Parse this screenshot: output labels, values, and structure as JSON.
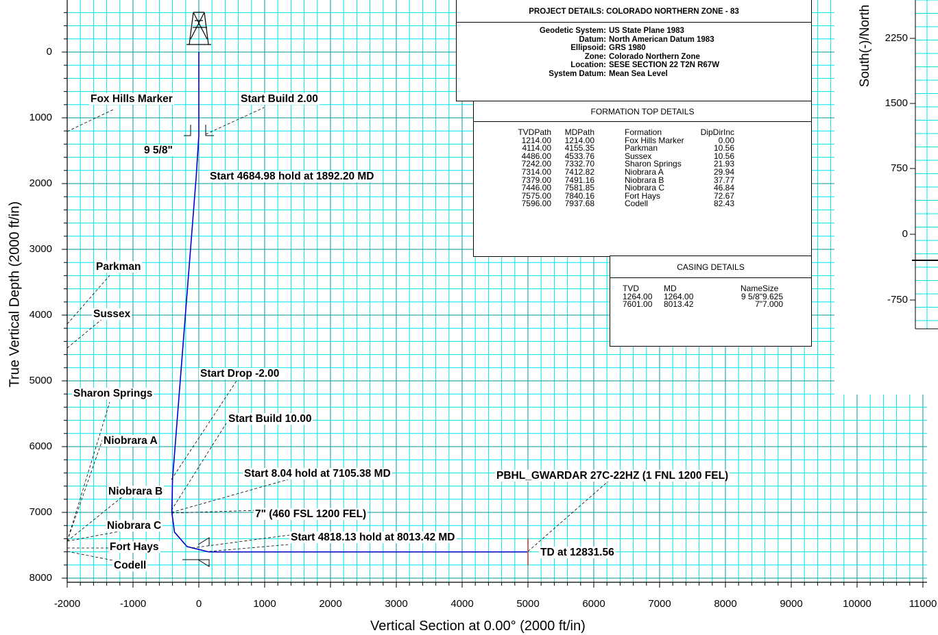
{
  "chart_data": {
    "type": "line",
    "xlabel": "Vertical Section at 0.00° (2000 ft/in)",
    "ylabel": "True Vertical Depth (2000 ft/in)",
    "xlim": [
      -2000,
      11000
    ],
    "ylim": [
      8000,
      0
    ],
    "x_ticks": [
      "-2000",
      "-1000",
      "0",
      "1000",
      "2000",
      "3000",
      "4000",
      "5000",
      "6000",
      "7000",
      "8000",
      "9000",
      "10000",
      "11000"
    ],
    "y_ticks": [
      "0",
      "1000",
      "2000",
      "3000",
      "4000",
      "5000",
      "6000",
      "7000",
      "8000"
    ],
    "grid": true,
    "well_path": {
      "color": "#0000cc",
      "points": [
        [
          0,
          0
        ],
        [
          0,
          1214
        ],
        [
          0,
          1264
        ],
        [
          -40,
          1892
        ],
        [
          -400,
          6500
        ],
        [
          -410,
          7000
        ],
        [
          -370,
          7300
        ],
        [
          -180,
          7520
        ],
        [
          150,
          7601
        ],
        [
          5000,
          7601
        ]
      ]
    },
    "annotations": [
      {
        "text": "Fox Hills Marker"
      },
      {
        "text": "Start Build 2.00"
      },
      {
        "text": "9 5/8\""
      },
      {
        "text": "Start 4684.98 hold at 1892.20 MD"
      },
      {
        "text": "Parkman"
      },
      {
        "text": "Sussex"
      },
      {
        "text": "Start Drop -2.00"
      },
      {
        "text": "Sharon Springs"
      },
      {
        "text": "Start Build 10.00"
      },
      {
        "text": "Niobrara A"
      },
      {
        "text": "Start 8.04 hold at 7105.38 MD"
      },
      {
        "text": "PBHL_GWARDAR 27C-22HZ (1 FNL 1200 FEL)"
      },
      {
        "text": "Niobrara B"
      },
      {
        "text": "7\" (460 FSL 1200 FEL)"
      },
      {
        "text": "Niobrara C"
      },
      {
        "text": "Start 4818.13 hold at 8013.42 MD"
      },
      {
        "text": "Fort Hays"
      },
      {
        "text": "TD at 12831.56"
      },
      {
        "text": "Codell"
      }
    ],
    "inset": {
      "ylabel": "South(-)/North",
      "y_ticks": [
        "2250",
        "1500",
        "750",
        "0",
        "-750"
      ]
    }
  },
  "project": {
    "title": "PROJECT  DETAILS:  COLORADO NORTHERN ZONE - 83",
    "rows": [
      {
        "k": "Geodetic System:",
        "v": "US State Plane 1983"
      },
      {
        "k": "Datum:",
        "v": "North American Datum 1983"
      },
      {
        "k": "Ellipsoid:",
        "v": "GRS 1980"
      },
      {
        "k": "Zone:",
        "v": "Colorado Northern Zone"
      },
      {
        "k": "Location:",
        "v": "SESE SECTION 22 T2N R67W"
      },
      {
        "k": "System Datum:",
        "v": "Mean Sea Level"
      }
    ]
  },
  "formation": {
    "title": "FORMATION TOP DETAILS",
    "headers": [
      "TVDPath",
      "MDPath",
      "Formation",
      "DipDirInc"
    ],
    "rows": [
      [
        "1214.00",
        "1214.00",
        "Fox Hills Marker",
        "0.00"
      ],
      [
        "4114.00",
        "4155.35",
        "Parkman",
        "10.56"
      ],
      [
        "4486.00",
        "4533.76",
        "Sussex",
        "10.56"
      ],
      [
        "7242.00",
        "7332.70",
        "Sharon Springs",
        "21.93"
      ],
      [
        "7314.00",
        "7412.82",
        "Niobrara A",
        "29.94"
      ],
      [
        "7379.00",
        "7491.16",
        "Niobrara B",
        "37.77"
      ],
      [
        "7446.00",
        "7581.85",
        "Niobrara C",
        "46.84"
      ],
      [
        "7575.00",
        "7840.16",
        "Fort Hays",
        "72.67"
      ],
      [
        "7596.00",
        "7937.68",
        "Codell",
        "82.43"
      ]
    ]
  },
  "casing": {
    "title": "CASING DETAILS",
    "headers": [
      "TVD",
      "MD",
      "Name",
      "Size"
    ],
    "rows": [
      [
        "1264.00",
        "1264.00",
        "9 5/8\"",
        "9.625"
      ],
      [
        "7601.00",
        "8013.42",
        "7\"",
        "7.000"
      ]
    ]
  },
  "colors": {
    "grid_minor": "#00e5e5",
    "grid_major": "#009999",
    "path": "#0000cc",
    "td_marker": "#cc6666"
  }
}
